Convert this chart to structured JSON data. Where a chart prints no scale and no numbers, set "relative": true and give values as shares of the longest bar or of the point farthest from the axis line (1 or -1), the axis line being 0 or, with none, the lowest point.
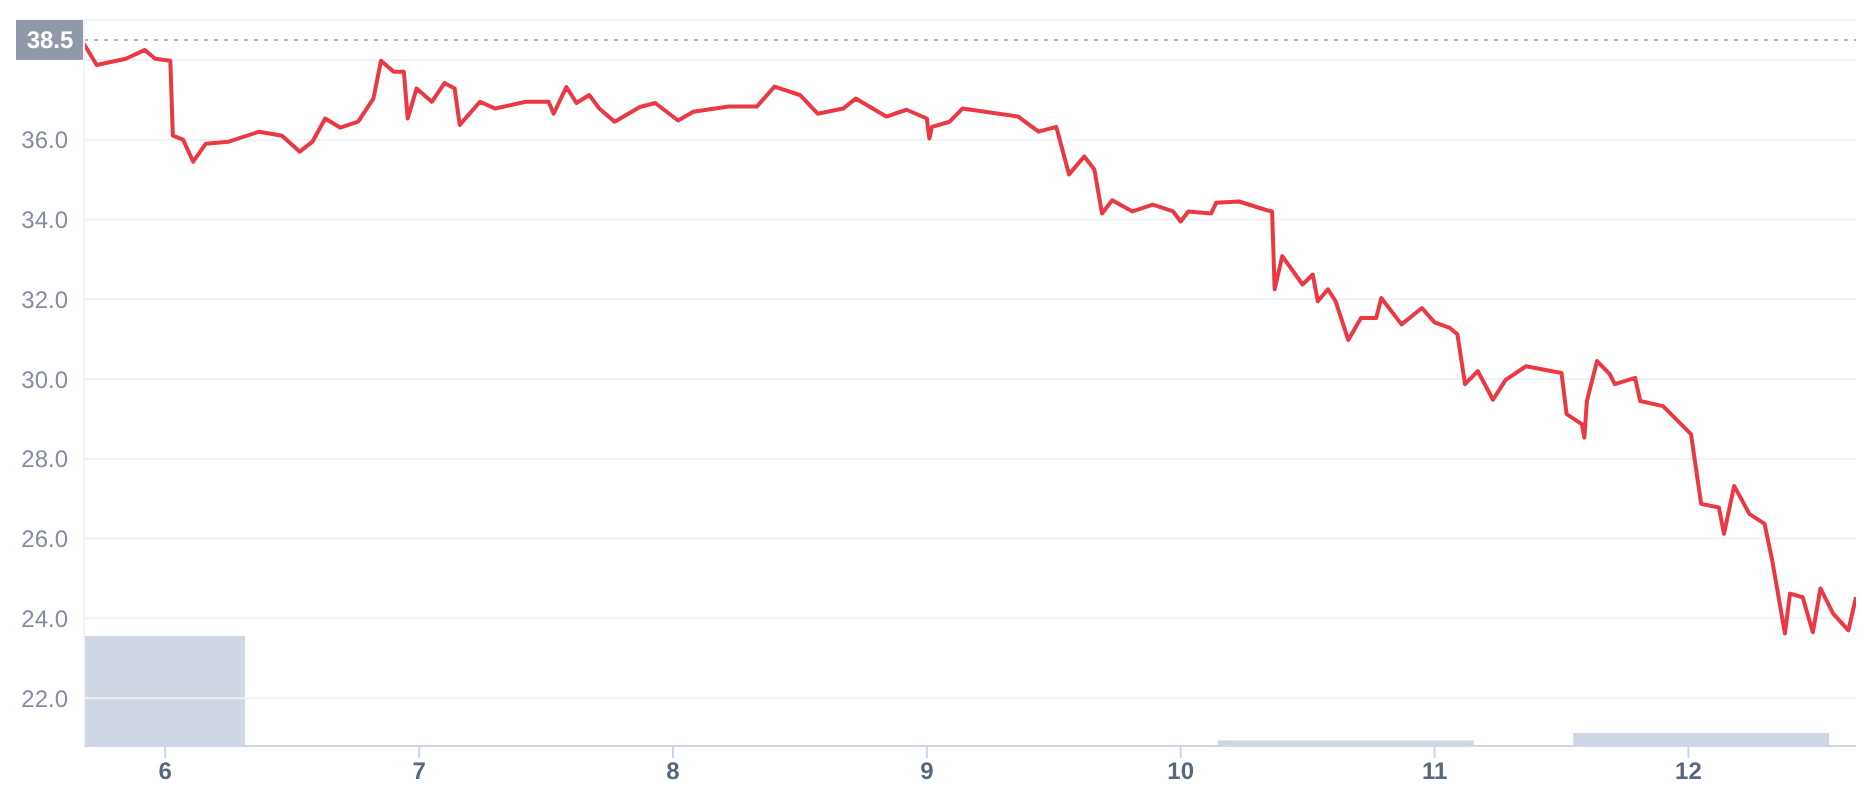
{
  "chart_data": [
    {
      "type": "line",
      "xlim": [
        5.68,
        12.66
      ],
      "xticks": [
        6,
        7,
        8,
        9,
        10,
        11,
        12
      ],
      "ylim": [
        20.8,
        39.0
      ],
      "yticks": [
        {
          "value": 22,
          "label": "22.0"
        },
        {
          "value": 24,
          "label": "24.0"
        },
        {
          "value": 26,
          "label": "26.0"
        },
        {
          "value": 28,
          "label": "28.0"
        },
        {
          "value": 30,
          "label": "30.0"
        },
        {
          "value": 32,
          "label": "32.0"
        },
        {
          "value": 34,
          "label": "34.0"
        },
        {
          "value": 36,
          "label": "36.0"
        },
        {
          "value": 38,
          "label": null
        }
      ],
      "grid": "y",
      "marker": "none",
      "line_style": "solid",
      "ref_lines": [
        {
          "axis": "y",
          "value": 38.5,
          "label": "38.5",
          "color": "#b0b5c0",
          "line_style": "dotted"
        }
      ],
      "series": [
        {
          "color": "#ea3943",
          "x": [
            5.68,
            5.73,
            5.845,
            5.92,
            5.96,
            6.02,
            6.03,
            6.07,
            6.11,
            6.16,
            6.25,
            6.37,
            6.46,
            6.53,
            6.58,
            6.63,
            6.69,
            6.76,
            6.82,
            6.85,
            6.9,
            6.94,
            6.955,
            6.99,
            7.05,
            7.1,
            7.14,
            7.16,
            7.24,
            7.3,
            7.42,
            7.51,
            7.53,
            7.58,
            7.62,
            7.67,
            7.71,
            7.77,
            7.87,
            7.93,
            8.02,
            8.08,
            8.22,
            8.33,
            8.4,
            8.5,
            8.57,
            8.67,
            8.72,
            8.84,
            8.92,
            9.0,
            9.01,
            9.02,
            9.09,
            9.14,
            9.36,
            9.44,
            9.51,
            9.56,
            9.62,
            9.66,
            9.69,
            9.73,
            9.81,
            9.89,
            9.97,
            10.0,
            10.03,
            10.12,
            10.14,
            10.23,
            10.33,
            10.36,
            10.37,
            10.4,
            10.48,
            10.52,
            10.54,
            10.58,
            10.61,
            10.66,
            10.71,
            10.77,
            10.79,
            10.87,
            10.95,
            11.0,
            11.06,
            11.09,
            11.12,
            11.17,
            11.23,
            11.28,
            11.36,
            11.5,
            11.52,
            11.58,
            11.59,
            11.6,
            11.64,
            11.69,
            11.71,
            11.79,
            11.81,
            11.9,
            12.01,
            12.05,
            12.12,
            12.14,
            12.18,
            12.24,
            12.3,
            12.33,
            12.38,
            12.4,
            12.45,
            12.49,
            12.52,
            12.57,
            12.63,
            12.66
          ],
          "values": [
            38.4,
            37.87,
            38.03,
            38.25,
            38.03,
            37.98,
            36.1,
            36.0,
            35.45,
            35.9,
            35.95,
            36.2,
            36.1,
            35.7,
            35.95,
            36.53,
            36.3,
            36.45,
            37.03,
            37.98,
            37.7,
            37.7,
            36.53,
            37.28,
            36.95,
            37.42,
            37.28,
            36.37,
            36.95,
            36.78,
            36.95,
            36.95,
            36.65,
            37.32,
            36.92,
            37.12,
            36.78,
            36.45,
            36.82,
            36.92,
            36.48,
            36.7,
            36.83,
            36.83,
            37.33,
            37.12,
            36.65,
            36.78,
            37.03,
            36.58,
            36.75,
            36.53,
            36.03,
            36.32,
            36.45,
            36.78,
            36.58,
            36.2,
            36.32,
            35.13,
            35.58,
            35.25,
            34.15,
            34.48,
            34.2,
            34.37,
            34.2,
            33.95,
            34.2,
            34.15,
            34.42,
            34.45,
            34.25,
            34.2,
            32.25,
            33.08,
            32.37,
            32.62,
            31.95,
            32.25,
            31.95,
            30.98,
            31.53,
            31.53,
            32.03,
            31.37,
            31.78,
            31.42,
            31.28,
            31.12,
            29.87,
            30.2,
            29.48,
            29.98,
            30.32,
            30.15,
            29.12,
            28.87,
            28.53,
            29.45,
            30.45,
            30.12,
            29.87,
            30.03,
            29.45,
            29.32,
            28.62,
            26.87,
            26.78,
            26.12,
            27.32,
            26.62,
            26.37,
            25.45,
            23.62,
            24.62,
            24.53,
            23.65,
            24.75,
            24.12,
            23.7,
            24.53
          ]
        }
      ]
    },
    {
      "type": "area",
      "relative": true,
      "tick_labels": false,
      "xlim": [
        5.68,
        12.66
      ],
      "series": [
        {
          "color": "#cfd6e4",
          "x": [
            5.68,
            6.31,
            6.31,
            10.15,
            10.15,
            11.15,
            11.15,
            11.55,
            11.55,
            12.55,
            12.55,
            12.66
          ],
          "values": [
            1,
            1,
            0,
            0,
            0.04,
            0.04,
            0,
            0,
            0.11,
            0.11,
            0,
            0
          ]
        }
      ]
    }
  ]
}
